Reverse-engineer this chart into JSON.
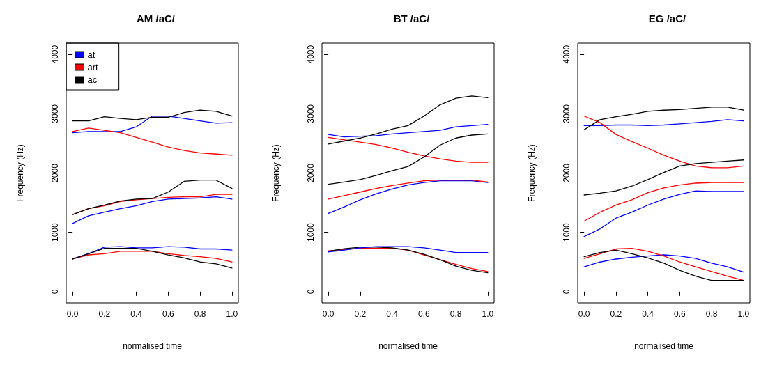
{
  "chart_data": [
    {
      "type": "line",
      "title": "AM /aC/",
      "xlabel": "normalised time",
      "ylabel": "Frequency (Hz)",
      "legend": "top left",
      "marker": "none",
      "line_style": "solid",
      "grid": false,
      "xlim": [
        -0.04,
        1.04
      ],
      "ylim": [
        -190,
        4190
      ],
      "xticks": [
        {
          "value": 0,
          "label": "0.0"
        },
        {
          "value": 0.2,
          "label": "0.2"
        },
        {
          "value": 0.4,
          "label": "0.4"
        },
        {
          "value": 0.6,
          "label": "0.6"
        },
        {
          "value": 0.8,
          "label": "0.8"
        },
        {
          "value": 1,
          "label": "1.0"
        }
      ],
      "yticks": [
        0,
        1000,
        2000,
        3000,
        4000
      ],
      "x": [
        0,
        0.1,
        0.2,
        0.3,
        0.4,
        0.5,
        0.6,
        0.7,
        0.8,
        0.9,
        1
      ],
      "series": [
        {
          "name": "at",
          "color": "#0000ff",
          "values": [
            2680,
            2700,
            2700,
            2700,
            2780,
            2960,
            2960,
            2920,
            2880,
            2840,
            2850
          ]
        },
        {
          "name": "art",
          "color": "#ff0000",
          "values": [
            2700,
            2760,
            2720,
            2680,
            2600,
            2520,
            2440,
            2380,
            2340,
            2320,
            2300
          ]
        },
        {
          "name": "ac",
          "color": "#000000",
          "values": [
            2880,
            2880,
            2950,
            2920,
            2900,
            2940,
            2940,
            3020,
            3060,
            3040,
            2960
          ]
        },
        {
          "color": "#0000ff",
          "values": [
            1150,
            1280,
            1340,
            1400,
            1450,
            1520,
            1560,
            1570,
            1580,
            1600,
            1560
          ]
        },
        {
          "color": "#ff0000",
          "values": [
            1300,
            1400,
            1450,
            1520,
            1550,
            1570,
            1590,
            1600,
            1600,
            1640,
            1640
          ]
        },
        {
          "color": "#000000",
          "values": [
            1300,
            1400,
            1460,
            1530,
            1560,
            1570,
            1680,
            1860,
            1880,
            1880,
            1740
          ]
        },
        {
          "color": "#0000ff",
          "values": [
            550,
            640,
            750,
            760,
            740,
            740,
            760,
            750,
            720,
            720,
            700
          ]
        },
        {
          "color": "#ff0000",
          "values": [
            550,
            620,
            640,
            680,
            680,
            680,
            640,
            610,
            590,
            560,
            500
          ]
        },
        {
          "color": "#000000",
          "values": [
            550,
            640,
            730,
            730,
            730,
            680,
            620,
            570,
            500,
            470,
            400
          ]
        }
      ]
    },
    {
      "type": "line",
      "title": "BT /aC/",
      "xlabel": "normalised time",
      "ylabel": "Frequency (Hz)",
      "legend": false,
      "marker": "none",
      "line_style": "solid",
      "grid": false,
      "xlim": [
        -0.04,
        1.04
      ],
      "ylim": [
        -190,
        4190
      ],
      "xticks": [
        {
          "value": 0,
          "label": "0.0"
        },
        {
          "value": 0.2,
          "label": "0.2"
        },
        {
          "value": 0.4,
          "label": "0.4"
        },
        {
          "value": 0.6,
          "label": "0.6"
        },
        {
          "value": 0.8,
          "label": "0.8"
        },
        {
          "value": 1,
          "label": "1.0"
        }
      ],
      "yticks": [
        0,
        1000,
        2000,
        3000,
        4000
      ],
      "x": [
        0,
        0.1,
        0.2,
        0.3,
        0.4,
        0.5,
        0.6,
        0.7,
        0.8,
        0.9,
        1
      ],
      "series": [
        {
          "color": "#0000ff",
          "values": [
            2650,
            2610,
            2620,
            2630,
            2660,
            2680,
            2700,
            2720,
            2780,
            2800,
            2820
          ]
        },
        {
          "color": "#ff0000",
          "values": [
            2600,
            2560,
            2520,
            2480,
            2420,
            2350,
            2290,
            2240,
            2200,
            2180,
            2180
          ]
        },
        {
          "color": "#000000",
          "values": [
            2490,
            2540,
            2590,
            2660,
            2740,
            2800,
            2960,
            3150,
            3260,
            3300,
            3270
          ]
        },
        {
          "color": "#0000ff",
          "values": [
            1320,
            1430,
            1550,
            1650,
            1730,
            1800,
            1840,
            1870,
            1870,
            1870,
            1840
          ]
        },
        {
          "color": "#ff0000",
          "values": [
            1560,
            1620,
            1680,
            1740,
            1790,
            1830,
            1870,
            1880,
            1880,
            1880,
            1850
          ]
        },
        {
          "color": "#000000",
          "values": [
            1810,
            1850,
            1890,
            1960,
            2040,
            2110,
            2270,
            2470,
            2590,
            2640,
            2660
          ]
        },
        {
          "color": "#ff0000",
          "values": [
            690,
            710,
            730,
            730,
            730,
            700,
            620,
            540,
            460,
            390,
            340
          ]
        },
        {
          "color": "#000000",
          "values": [
            680,
            725,
            750,
            750,
            740,
            700,
            630,
            540,
            430,
            360,
            320
          ]
        },
        {
          "color": "#0000ff",
          "values": [
            670,
            700,
            740,
            760,
            760,
            760,
            740,
            700,
            660,
            660,
            660
          ]
        }
      ]
    },
    {
      "type": "line",
      "title": "EG /aC/",
      "xlabel": "normalised time",
      "ylabel": "Frequency (Hz)",
      "legend": false,
      "marker": "none",
      "line_style": "solid",
      "grid": false,
      "xlim": [
        -0.04,
        1.04
      ],
      "ylim": [
        -190,
        4190
      ],
      "xticks": [
        {
          "value": 0,
          "label": "0.0"
        },
        {
          "value": 0.2,
          "label": "0.2"
        },
        {
          "value": 0.4,
          "label": "0.4"
        },
        {
          "value": 0.6,
          "label": "0.6"
        },
        {
          "value": 0.8,
          "label": "0.8"
        },
        {
          "value": 1,
          "label": "1.0"
        }
      ],
      "yticks": [
        0,
        1000,
        2000,
        3000,
        4000
      ],
      "x": [
        0,
        0.1,
        0.2,
        0.3,
        0.4,
        0.5,
        0.6,
        0.7,
        0.8,
        0.9,
        1
      ],
      "series": [
        {
          "color": "#0000ff",
          "values": [
            2800,
            2800,
            2810,
            2810,
            2800,
            2810,
            2830,
            2850,
            2870,
            2900,
            2880
          ]
        },
        {
          "color": "#ff0000",
          "values": [
            2960,
            2850,
            2650,
            2530,
            2420,
            2300,
            2200,
            2120,
            2090,
            2090,
            2120
          ]
        },
        {
          "color": "#000000",
          "values": [
            2730,
            2900,
            2950,
            2990,
            3040,
            3060,
            3070,
            3090,
            3110,
            3110,
            3060
          ]
        },
        {
          "color": "#0000ff",
          "values": [
            930,
            1060,
            1240,
            1340,
            1460,
            1560,
            1640,
            1700,
            1690,
            1690,
            1690
          ]
        },
        {
          "color": "#ff0000",
          "values": [
            1190,
            1340,
            1460,
            1550,
            1670,
            1750,
            1800,
            1830,
            1840,
            1840,
            1840
          ]
        },
        {
          "color": "#000000",
          "values": [
            1630,
            1660,
            1700,
            1780,
            1890,
            2010,
            2120,
            2160,
            2180,
            2200,
            2220
          ]
        },
        {
          "color": "#0000ff",
          "values": [
            420,
            500,
            550,
            580,
            600,
            620,
            600,
            560,
            480,
            420,
            330
          ]
        },
        {
          "color": "#ff0000",
          "values": [
            560,
            640,
            720,
            730,
            680,
            600,
            500,
            420,
            340,
            260,
            190
          ]
        },
        {
          "color": "#000000",
          "values": [
            590,
            660,
            700,
            640,
            570,
            480,
            360,
            260,
            190,
            190,
            190
          ]
        }
      ]
    }
  ]
}
